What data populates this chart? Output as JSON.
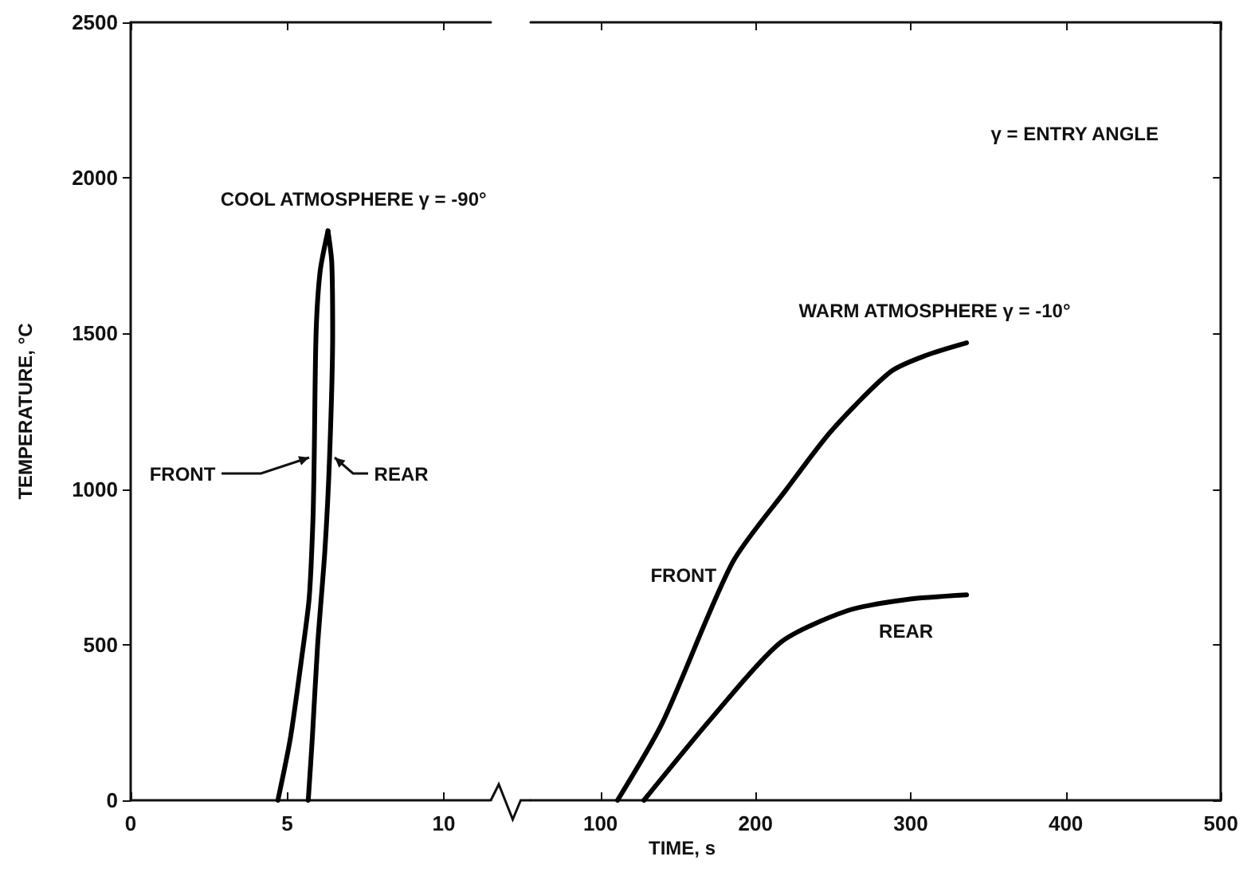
{
  "chart_data": [
    {
      "type": "line",
      "ylabel": "TEMPERATURE, °C",
      "xlim": [
        0,
        11.5
      ],
      "xticks": [
        0,
        5,
        10
      ],
      "ylim": [
        0,
        2500
      ],
      "yticks": [
        0,
        500,
        1000,
        1500,
        2000,
        2500
      ],
      "marker": "none",
      "line_style": "solid",
      "grid": false,
      "annotations": [
        {
          "text": "COOL ATMOSPHERE γ = -90°",
          "x": 6.3,
          "y": 1830
        }
      ],
      "series": [
        {
          "name": "FRONT",
          "color": "#000000",
          "x": [
            4.7,
            5.1,
            5.45,
            5.7,
            5.82,
            5.86,
            5.92,
            6.05,
            6.3
          ],
          "values": [
            0,
            200,
            450,
            650,
            900,
            1100,
            1500,
            1700,
            1830
          ]
        },
        {
          "name": "REAR",
          "color": "#000000",
          "x": [
            5.67,
            5.8,
            5.97,
            6.2,
            6.35,
            6.45,
            6.42,
            6.3
          ],
          "values": [
            0,
            200,
            500,
            800,
            1100,
            1500,
            1730,
            1830
          ]
        }
      ]
    },
    {
      "type": "line",
      "xlabel": "TIME, s",
      "xlim": [
        55,
        500
      ],
      "xticks": [
        100,
        200,
        300,
        400,
        500
      ],
      "ylim": [
        0,
        2500
      ],
      "yticks": [
        0,
        500,
        1000,
        1500,
        2000,
        2500
      ],
      "tick_labels": "x",
      "marker": "none",
      "line_style": "solid",
      "grid": false,
      "annotations": [
        {
          "text": "WARM ATMOSPHERE γ = -10°",
          "x": 336,
          "y": 1470
        },
        "γ = ENTRY ANGLE"
      ],
      "series": [
        {
          "name": "FRONT",
          "color": "#000000",
          "x": [
            111,
            140,
            185,
            220,
            249,
            287,
            310,
            336
          ],
          "values": [
            0,
            250,
            763,
            1000,
            1188,
            1377,
            1430,
            1470
          ]
        },
        {
          "name": "REAR",
          "color": "#000000",
          "x": [
            128,
            172,
            216,
            259,
            297,
            336
          ],
          "values": [
            0,
            266,
            507,
            609,
            645,
            660
          ]
        }
      ]
    }
  ]
}
